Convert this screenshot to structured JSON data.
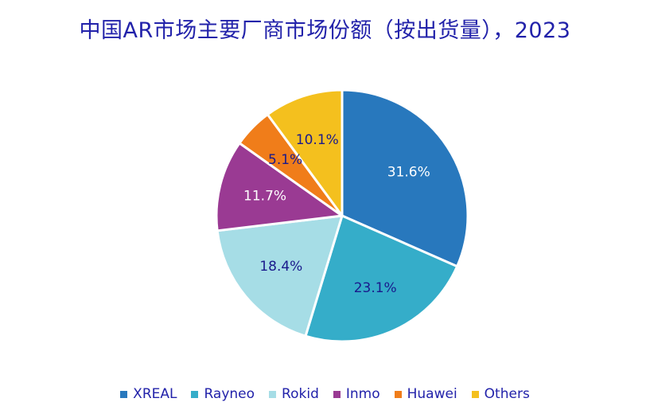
{
  "chart_data": {
    "type": "pie",
    "title": "中国AR市场主要厂商市场份额（按出货量），2023",
    "categories": [
      "XREAL",
      "Rayneo",
      "Rokid",
      "Inmo",
      "Huawei",
      "Others"
    ],
    "values": [
      31.6,
      23.1,
      18.4,
      11.7,
      5.1,
      10.1
    ],
    "data_labels": [
      "31.6%",
      "23.1%",
      "18.4%",
      "11.7%",
      "5.1%",
      "10.1%"
    ],
    "colors": [
      "#2878bd",
      "#35adc9",
      "#a6dde6",
      "#9a3a93",
      "#f07d1a",
      "#f4c01e"
    ],
    "label_colors": [
      "#ffffff",
      "#1a1a8c",
      "#1a1a8c",
      "#ffffff",
      "#1a1a8c",
      "#1a1a8c"
    ],
    "start_angle": "12 o'clock, clockwise",
    "legend_position": "bottom"
  }
}
